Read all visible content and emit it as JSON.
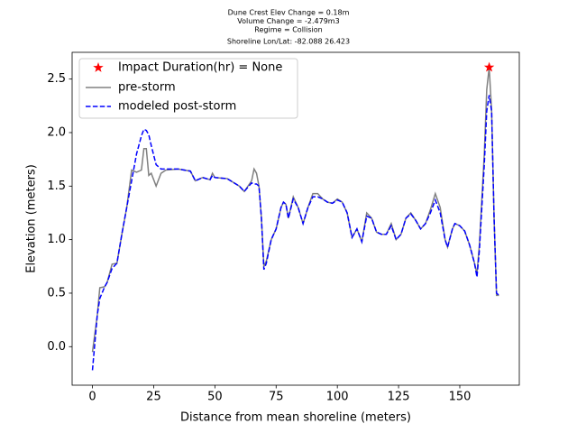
{
  "chart_data": {
    "type": "line",
    "title": [
      "Dune Crest Elev Change = 0.18m",
      "Volume Change = -2.479m3",
      "Regime = Collision",
      "Shoreline Lon/Lat: -82.088 26.423"
    ],
    "xlabel": "Distance from mean shoreline (meters)",
    "ylabel": "Elevation (meters)",
    "x": [
      0,
      2,
      3,
      5,
      6,
      8,
      10,
      12,
      14,
      16,
      18,
      20,
      21,
      22,
      23,
      24,
      26,
      28,
      30,
      35,
      40,
      42,
      45,
      48,
      49,
      50,
      55,
      60,
      62,
      65,
      66,
      67,
      68,
      69,
      70,
      71,
      73,
      75,
      77,
      78,
      79,
      80,
      82,
      84,
      86,
      88,
      90,
      92,
      94,
      96,
      98,
      100,
      102,
      104,
      106,
      108,
      110,
      112,
      114,
      116,
      118,
      120,
      122,
      124,
      126,
      128,
      130,
      132,
      134,
      136,
      138,
      140,
      142,
      144,
      145,
      147,
      148,
      150,
      152,
      154,
      156,
      157,
      158,
      160,
      161,
      162,
      163,
      164,
      165,
      166
    ],
    "series": [
      {
        "name": "pre-storm",
        "color": "#808080",
        "dash": false,
        "values": [
          -0.05,
          0.3,
          0.55,
          0.56,
          0.6,
          0.77,
          0.78,
          1.05,
          1.3,
          1.65,
          1.63,
          1.65,
          1.85,
          1.85,
          1.6,
          1.62,
          1.5,
          1.62,
          1.65,
          1.66,
          1.64,
          1.55,
          1.58,
          1.56,
          1.62,
          1.58,
          1.57,
          1.5,
          1.45,
          1.55,
          1.66,
          1.62,
          1.5,
          1.2,
          0.75,
          0.8,
          1.0,
          1.1,
          1.3,
          1.35,
          1.33,
          1.2,
          1.4,
          1.3,
          1.15,
          1.3,
          1.43,
          1.43,
          1.38,
          1.35,
          1.34,
          1.38,
          1.35,
          1.25,
          1.02,
          1.1,
          0.98,
          1.25,
          1.2,
          1.07,
          1.05,
          1.05,
          1.15,
          1.0,
          1.05,
          1.2,
          1.25,
          1.18,
          1.1,
          1.15,
          1.28,
          1.43,
          1.3,
          1.0,
          0.93,
          1.1,
          1.15,
          1.13,
          1.08,
          0.95,
          0.78,
          0.68,
          0.95,
          1.8,
          2.4,
          2.61,
          2.2,
          1.2,
          0.48,
          0.48
        ]
      },
      {
        "name": "modeled post-storm",
        "color": "#0000ff",
        "dash": true,
        "values": [
          -0.22,
          0.3,
          0.45,
          0.56,
          0.6,
          0.73,
          0.78,
          1.05,
          1.3,
          1.55,
          1.8,
          1.97,
          2.03,
          2.02,
          1.98,
          1.88,
          1.7,
          1.66,
          1.66,
          1.66,
          1.64,
          1.55,
          1.58,
          1.56,
          1.6,
          1.58,
          1.57,
          1.5,
          1.45,
          1.53,
          1.52,
          1.52,
          1.5,
          1.2,
          0.72,
          0.78,
          1.0,
          1.1,
          1.3,
          1.35,
          1.33,
          1.2,
          1.38,
          1.3,
          1.15,
          1.3,
          1.4,
          1.4,
          1.38,
          1.35,
          1.34,
          1.37,
          1.35,
          1.25,
          1.02,
          1.1,
          0.98,
          1.22,
          1.2,
          1.07,
          1.05,
          1.05,
          1.13,
          1.0,
          1.05,
          1.2,
          1.24,
          1.18,
          1.1,
          1.15,
          1.25,
          1.37,
          1.25,
          1.0,
          0.93,
          1.1,
          1.15,
          1.13,
          1.08,
          0.95,
          0.78,
          0.65,
          0.9,
          1.7,
          2.2,
          2.35,
          2.2,
          1.2,
          0.5,
          0.48
        ]
      }
    ],
    "marker": {
      "name": "Impact Duration(hr) = None",
      "color": "#ff0000",
      "x": [
        162
      ],
      "values": [
        2.61
      ]
    },
    "xlim": [
      -8.3,
      174.3
    ],
    "xticks": [
      0,
      25,
      50,
      75,
      100,
      125,
      150
    ],
    "ylim": [
      -0.36,
      2.75
    ],
    "yticks": [
      {
        "value": 0,
        "label": "0.0"
      },
      {
        "value": 0.5,
        "label": "0.5"
      },
      {
        "value": 1,
        "label": "1.0"
      },
      {
        "value": 1.5,
        "label": "1.5"
      },
      {
        "value": 2,
        "label": "2.0"
      },
      {
        "value": 2.5,
        "label": "2.5"
      }
    ],
    "legend": "upper left",
    "grid": false
  }
}
